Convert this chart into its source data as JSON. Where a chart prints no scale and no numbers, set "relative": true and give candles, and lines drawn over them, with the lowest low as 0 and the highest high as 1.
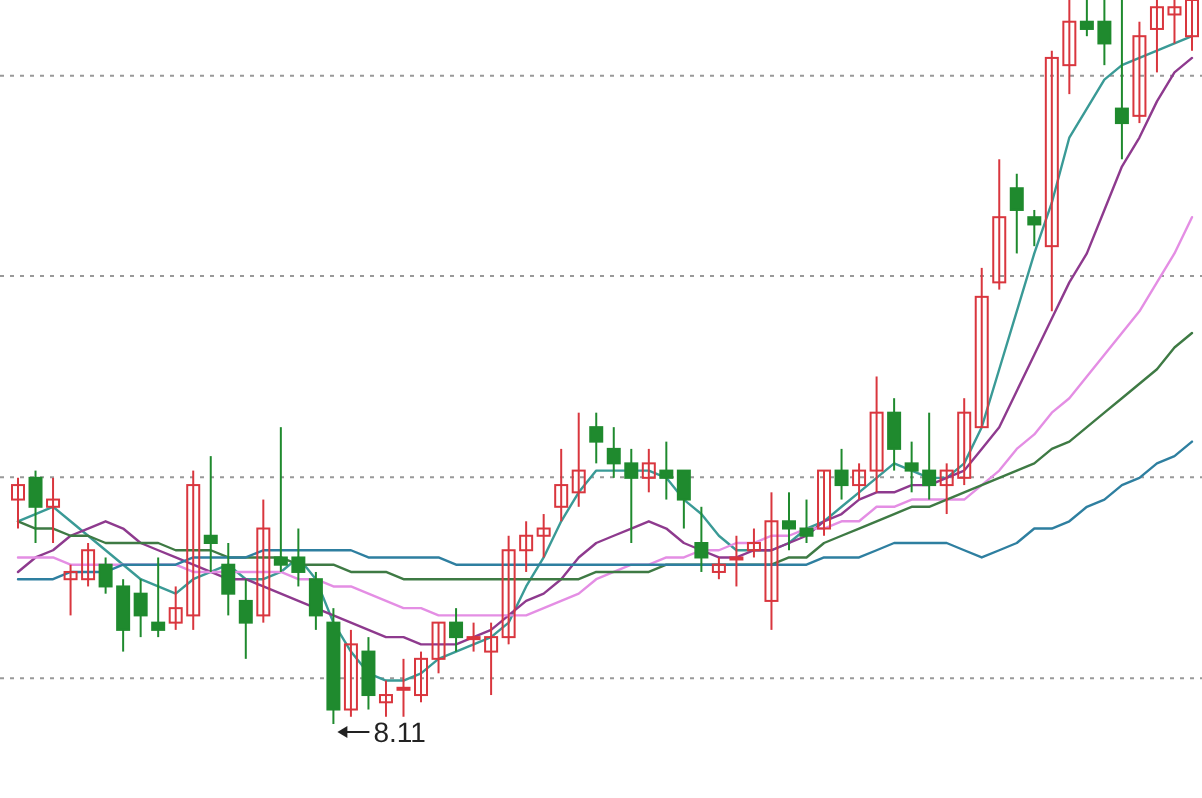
{
  "chart_data": {
    "type": "candlestick",
    "relative": true,
    "grid": true,
    "marker": "none",
    "line_style": "solid",
    "categories": [
      null,
      null,
      null,
      null,
      null,
      null,
      null,
      null,
      null,
      null,
      null,
      null,
      null,
      null,
      null,
      null,
      null,
      null,
      null,
      null,
      null,
      null,
      null,
      null,
      null,
      null,
      null,
      null,
      null,
      null,
      null,
      null,
      null,
      null,
      null,
      null,
      null,
      null,
      null,
      null,
      null,
      null,
      null,
      null,
      null,
      null,
      null,
      null,
      null,
      null,
      null,
      null,
      null,
      null,
      null,
      null,
      null,
      null,
      null,
      null,
      null,
      null,
      null,
      null,
      null,
      null,
      null,
      null
    ],
    "ohlc": [
      [
        0.31,
        0.34,
        0.27,
        0.33
      ],
      [
        0.34,
        0.35,
        0.25,
        0.3
      ],
      [
        0.3,
        0.34,
        0.25,
        0.31
      ],
      [
        0.2,
        0.22,
        0.15,
        0.21
      ],
      [
        0.2,
        0.25,
        0.19,
        0.24
      ],
      [
        0.22,
        0.23,
        0.18,
        0.19
      ],
      [
        0.19,
        0.2,
        0.1,
        0.13
      ],
      [
        0.18,
        0.2,
        0.12,
        0.15
      ],
      [
        0.14,
        0.23,
        0.12,
        0.13
      ],
      [
        0.14,
        0.19,
        0.13,
        0.16
      ],
      [
        0.15,
        0.35,
        0.13,
        0.33
      ],
      [
        0.26,
        0.37,
        0.21,
        0.25
      ],
      [
        0.22,
        0.25,
        0.15,
        0.18
      ],
      [
        0.17,
        0.2,
        0.09,
        0.14
      ],
      [
        0.15,
        0.31,
        0.14,
        0.27
      ],
      [
        0.23,
        0.41,
        0.21,
        0.22
      ],
      [
        0.23,
        0.27,
        0.19,
        0.21
      ],
      [
        0.2,
        0.21,
        0.13,
        0.15
      ],
      [
        0.14,
        0.16,
        0,
        0.02
      ],
      [
        0.02,
        0.13,
        0.01,
        0.11
      ],
      [
        0.1,
        0.12,
        0.02,
        0.04
      ],
      [
        0.03,
        0.06,
        0.01,
        0.04
      ],
      [
        0.05,
        0.09,
        0.01,
        0.05
      ],
      [
        0.04,
        0.1,
        0.03,
        0.09
      ],
      [
        0.09,
        0.14,
        0.07,
        0.14
      ],
      [
        0.14,
        0.16,
        0.1,
        0.12
      ],
      [
        0.12,
        0.14,
        0.1,
        0.12
      ],
      [
        0.1,
        0.14,
        0.04,
        0.12
      ],
      [
        0.12,
        0.26,
        0.11,
        0.24
      ],
      [
        0.24,
        0.28,
        0.21,
        0.26
      ],
      [
        0.26,
        0.29,
        0.23,
        0.27
      ],
      [
        0.3,
        0.38,
        0.28,
        0.33
      ],
      [
        0.32,
        0.43,
        0.3,
        0.35
      ],
      [
        0.41,
        0.43,
        0.36,
        0.39
      ],
      [
        0.38,
        0.41,
        0.34,
        0.36
      ],
      [
        0.36,
        0.38,
        0.25,
        0.34
      ],
      [
        0.34,
        0.38,
        0.32,
        0.36
      ],
      [
        0.35,
        0.39,
        0.31,
        0.34
      ],
      [
        0.35,
        0.35,
        0.27,
        0.31
      ],
      [
        0.25,
        0.3,
        0.21,
        0.23
      ],
      [
        0.21,
        0.23,
        0.2,
        0.22
      ],
      [
        0.23,
        0.26,
        0.19,
        0.23
      ],
      [
        0.24,
        0.27,
        0.23,
        0.25
      ],
      [
        0.17,
        0.32,
        0.13,
        0.28
      ],
      [
        0.28,
        0.32,
        0.24,
        0.27
      ],
      [
        0.27,
        0.31,
        0.25,
        0.26
      ],
      [
        0.27,
        0.35,
        0.26,
        0.35
      ],
      [
        0.35,
        0.38,
        0.31,
        0.33
      ],
      [
        0.33,
        0.36,
        0.31,
        0.35
      ],
      [
        0.35,
        0.48,
        0.32,
        0.43
      ],
      [
        0.43,
        0.45,
        0.35,
        0.38
      ],
      [
        0.36,
        0.39,
        0.32,
        0.35
      ],
      [
        0.35,
        0.43,
        0.31,
        0.33
      ],
      [
        0.33,
        0.36,
        0.29,
        0.35
      ],
      [
        0.34,
        0.45,
        0.33,
        0.43
      ],
      [
        0.41,
        0.63,
        0.41,
        0.59
      ],
      [
        0.61,
        0.78,
        0.6,
        0.7
      ],
      [
        0.74,
        0.76,
        0.65,
        0.71
      ],
      [
        0.7,
        0.71,
        0.66,
        0.69
      ],
      [
        0.66,
        0.93,
        0.57,
        0.92
      ],
      [
        0.91,
        1,
        0.87,
        0.97
      ],
      [
        0.97,
        1,
        0.95,
        0.96
      ],
      [
        0.97,
        1,
        0.91,
        0.94
      ],
      [
        0.85,
        1,
        0.78,
        0.83
      ],
      [
        0.84,
        0.97,
        0.83,
        0.95
      ],
      [
        0.96,
        1,
        0.9,
        0.99
      ],
      [
        0.98,
        1,
        0.94,
        0.99
      ],
      [
        0.95,
        1,
        0.93,
        1
      ]
    ],
    "series": [
      {
        "type": "line",
        "color": "#3a9a96",
        "values": [
          0.28,
          0.29,
          0.3,
          0.28,
          0.26,
          0.24,
          0.22,
          0.2,
          0.19,
          0.18,
          0.2,
          0.21,
          0.22,
          0.2,
          0.2,
          0.21,
          0.23,
          0.2,
          0.14,
          0.1,
          0.07,
          0.06,
          0.06,
          0.07,
          0.09,
          0.1,
          0.11,
          0.12,
          0.14,
          0.19,
          0.23,
          0.28,
          0.32,
          0.35,
          0.35,
          0.35,
          0.35,
          0.34,
          0.31,
          0.29,
          0.26,
          0.24,
          0.24,
          0.24,
          0.25,
          0.27,
          0.28,
          0.3,
          0.32,
          0.34,
          0.36,
          0.35,
          0.34,
          0.34,
          0.36,
          0.41,
          0.49,
          0.57,
          0.65,
          0.72,
          0.81,
          0.85,
          0.89,
          0.91,
          0.92,
          0.93,
          0.94,
          0.95
        ]
      },
      {
        "type": "line",
        "color": "#8e3a8e",
        "values": [
          0.21,
          0.23,
          0.24,
          0.26,
          0.27,
          0.28,
          0.27,
          0.25,
          0.24,
          0.23,
          0.22,
          0.21,
          0.2,
          0.2,
          0.19,
          0.18,
          0.17,
          0.16,
          0.15,
          0.14,
          0.13,
          0.12,
          0.12,
          0.11,
          0.11,
          0.11,
          0.12,
          0.13,
          0.15,
          0.17,
          0.18,
          0.2,
          0.23,
          0.25,
          0.26,
          0.27,
          0.28,
          0.27,
          0.25,
          0.24,
          0.23,
          0.23,
          0.24,
          0.24,
          0.25,
          0.26,
          0.28,
          0.29,
          0.31,
          0.32,
          0.32,
          0.33,
          0.33,
          0.34,
          0.35,
          0.38,
          0.41,
          0.46,
          0.51,
          0.56,
          0.61,
          0.65,
          0.71,
          0.77,
          0.81,
          0.86,
          0.9,
          0.92
        ]
      },
      {
        "type": "line",
        "color": "#e48ee4",
        "values": [
          0.23,
          0.23,
          0.23,
          0.22,
          0.22,
          0.22,
          0.22,
          0.22,
          0.22,
          0.22,
          0.21,
          0.21,
          0.21,
          0.21,
          0.21,
          0.21,
          0.2,
          0.2,
          0.19,
          0.19,
          0.18,
          0.17,
          0.16,
          0.16,
          0.15,
          0.15,
          0.15,
          0.15,
          0.15,
          0.15,
          0.16,
          0.17,
          0.18,
          0.2,
          0.21,
          0.22,
          0.22,
          0.23,
          0.23,
          0.24,
          0.24,
          0.25,
          0.25,
          0.26,
          0.26,
          0.27,
          0.27,
          0.28,
          0.28,
          0.3,
          0.3,
          0.31,
          0.31,
          0.31,
          0.31,
          0.33,
          0.35,
          0.38,
          0.4,
          0.43,
          0.45,
          0.48,
          0.51,
          0.54,
          0.57,
          0.61,
          0.65,
          0.7
        ]
      },
      {
        "type": "line",
        "color": "#3e7a44",
        "values": [
          0.28,
          0.27,
          0.27,
          0.26,
          0.26,
          0.25,
          0.25,
          0.25,
          0.25,
          0.24,
          0.24,
          0.24,
          0.23,
          0.23,
          0.23,
          0.23,
          0.22,
          0.22,
          0.22,
          0.21,
          0.21,
          0.21,
          0.2,
          0.2,
          0.2,
          0.2,
          0.2,
          0.2,
          0.2,
          0.2,
          0.2,
          0.2,
          0.2,
          0.21,
          0.21,
          0.21,
          0.21,
          0.22,
          0.22,
          0.22,
          0.22,
          0.22,
          0.22,
          0.22,
          0.23,
          0.23,
          0.25,
          0.26,
          0.27,
          0.28,
          0.29,
          0.3,
          0.3,
          0.31,
          0.32,
          0.33,
          0.34,
          0.35,
          0.36,
          0.38,
          0.39,
          0.41,
          0.43,
          0.45,
          0.47,
          0.49,
          0.52,
          0.54
        ]
      },
      {
        "type": "line",
        "color": "#2e7fa0",
        "values": [
          0.2,
          0.2,
          0.2,
          0.21,
          0.21,
          0.21,
          0.22,
          0.22,
          0.22,
          0.22,
          0.23,
          0.23,
          0.23,
          0.23,
          0.24,
          0.24,
          0.24,
          0.24,
          0.24,
          0.24,
          0.23,
          0.23,
          0.23,
          0.23,
          0.23,
          0.22,
          0.22,
          0.22,
          0.22,
          0.22,
          0.22,
          0.22,
          0.22,
          0.22,
          0.22,
          0.22,
          0.22,
          0.22,
          0.22,
          0.22,
          0.22,
          0.22,
          0.22,
          0.22,
          0.22,
          0.22,
          0.23,
          0.23,
          0.23,
          0.24,
          0.25,
          0.25,
          0.25,
          0.25,
          0.24,
          0.23,
          0.24,
          0.25,
          0.27,
          0.27,
          0.28,
          0.3,
          0.31,
          0.33,
          0.34,
          0.36,
          0.37,
          0.39
        ]
      }
    ],
    "annotations": [
      {
        "text": "8.11",
        "y": 0
      }
    ]
  }
}
